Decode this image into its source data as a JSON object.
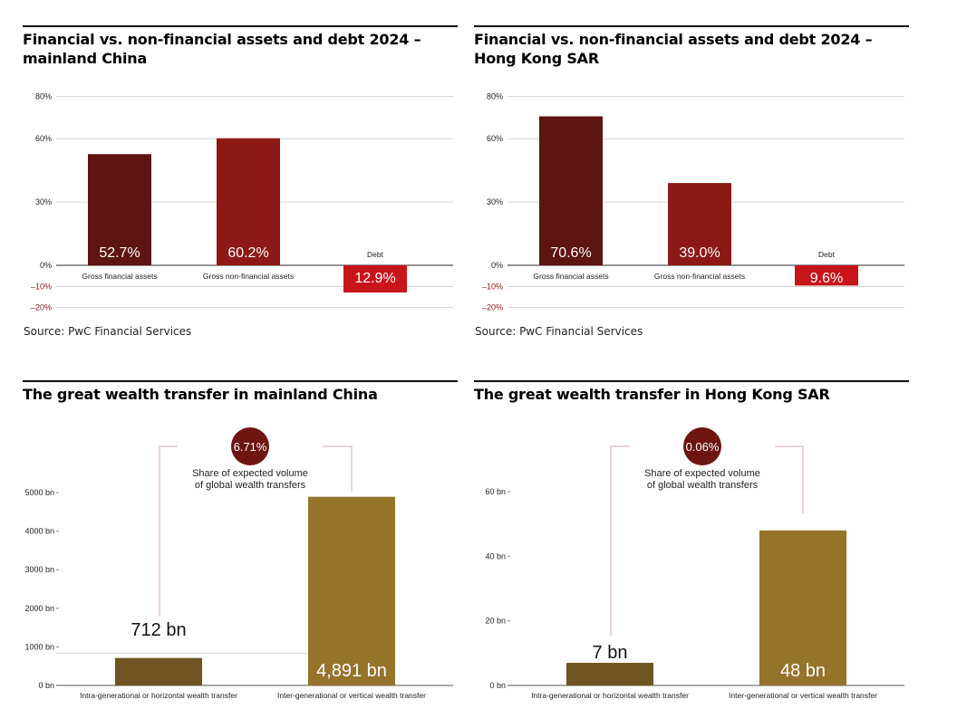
{
  "colors": {
    "dark_red": "#5e1410",
    "red": "#8c1915",
    "bright_red": "#c8151c",
    "dark_gold": "#6f5423",
    "gold": "#96732b",
    "grid": "#c9c9c9",
    "neg_tick": "#8c1915",
    "badge": "#6e1512",
    "bracket": "#d9a7b4"
  },
  "chart_data": [
    {
      "type": "bar",
      "title": "Financial vs. non-financial assets and debt 2024 – mainland China",
      "categories": [
        "Gross financial assets",
        "Gross non-financial assets",
        "Debt"
      ],
      "values": [
        52.7,
        60.2,
        -12.9
      ],
      "value_labels": [
        "52.7%",
        "60.2%",
        "12.9%"
      ],
      "yticks": [
        80,
        60,
        30,
        0,
        -10,
        -20
      ],
      "ytick_labels": [
        "80%",
        "60%",
        "30%",
        "0%",
        "–10%",
        "–20%"
      ],
      "ylim": [
        -20,
        80
      ],
      "source": "Source: PwC Financial Services"
    },
    {
      "type": "bar",
      "title": "Financial vs. non-financial assets and debt 2024 – Hong Kong SAR",
      "categories": [
        "Gross financial assets",
        "Gross non-financial assets",
        "Debt"
      ],
      "values": [
        70.6,
        39.0,
        -9.6
      ],
      "value_labels": [
        "70.6%",
        "39.0%",
        "9.6%"
      ],
      "yticks": [
        80,
        60,
        30,
        0,
        -10,
        -20
      ],
      "ytick_labels": [
        "80%",
        "60%",
        "30%",
        "0%",
        "–10%",
        "–20%"
      ],
      "ylim": [
        -20,
        80
      ],
      "source": "Source: PwC Financial Services"
    },
    {
      "type": "bar",
      "title": "The great wealth transfer in mainland China",
      "categories": [
        "Intra-generational or horizontal wealth transfer",
        "Inter-generational or vertical wealth transfer"
      ],
      "values": [
        712,
        4891
      ],
      "value_labels": [
        "712 bn",
        "4,891 bn"
      ],
      "yticks": [
        0,
        1000,
        2000,
        3000,
        4000,
        5000
      ],
      "ytick_labels": [
        "0 bn",
        "1000 bn",
        "2000 bn",
        "3000 bn",
        "4000 bn",
        "5000 bn"
      ],
      "ylim": [
        0,
        5000
      ],
      "share": "6.71%",
      "share_caption": [
        "Share of expected volume",
        "of global wealth transfers"
      ]
    },
    {
      "type": "bar",
      "title": "The great wealth transfer in Hong Kong SAR",
      "categories": [
        "Intra-generational or horizontal wealth transfer",
        "Inter-generational or vertical wealth transfer"
      ],
      "values": [
        7,
        48
      ],
      "value_labels": [
        "7 bn",
        "48 bn"
      ],
      "yticks": [
        0,
        20,
        40,
        60
      ],
      "ytick_labels": [
        "0 bn",
        "20 bn",
        "40 bn",
        "60 bn"
      ],
      "ylim": [
        0,
        60
      ],
      "share": "0.06%",
      "share_caption": [
        "Share of expected volume",
        "of global wealth transfers"
      ]
    }
  ]
}
